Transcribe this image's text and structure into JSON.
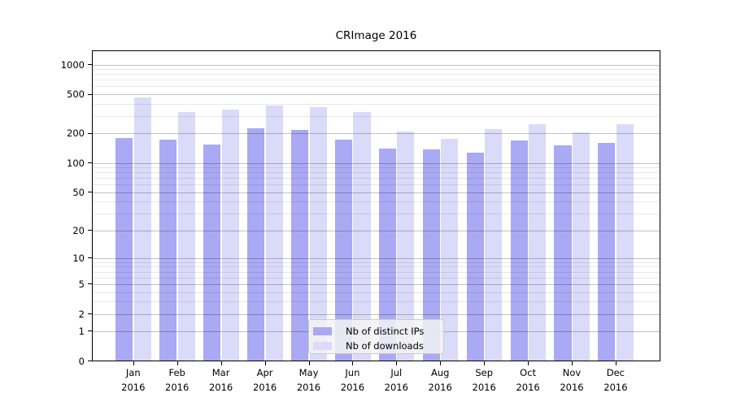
{
  "chart_data": {
    "type": "bar",
    "title": "CRImage 2016",
    "categories": [
      "Jan",
      "Feb",
      "Mar",
      "Apr",
      "May",
      "Jun",
      "Jul",
      "Aug",
      "Sep",
      "Oct",
      "Nov",
      "Dec"
    ],
    "category_year": "2016",
    "series": [
      {
        "name": "Nb of distinct IPs",
        "color": "#a9a9f4",
        "values": [
          181,
          174,
          156,
          228,
          221,
          176,
          141,
          138,
          129,
          170,
          152,
          163
        ]
      },
      {
        "name": "Nb of downloads",
        "color": "#dadaf9",
        "values": [
          470,
          336,
          352,
          388,
          370,
          336,
          210,
          179,
          225,
          252,
          208,
          253
        ]
      }
    ],
    "y_axis": {
      "scale": "log1p",
      "major_ticks": [
        0,
        1,
        2,
        5,
        10,
        20,
        50,
        100,
        200,
        500,
        1000
      ],
      "minor_ticks": [
        3,
        4,
        6,
        7,
        8,
        9,
        30,
        40,
        60,
        70,
        80,
        90,
        300,
        400,
        600,
        700,
        800,
        900
      ],
      "top_value": 1380
    },
    "legend": {
      "position": "lower-center"
    },
    "colors": {
      "bar_distinct_ips": "#a9a9f4",
      "bar_downloads": "#dadaf9",
      "major_grid": "#c2c2c2",
      "minor_grid": "#e9e9e9",
      "spine": "#000000",
      "legend_bg": "#f2f2f2",
      "legend_border": "#cccccc"
    },
    "grid": "on",
    "xlabel": "",
    "ylabel": ""
  }
}
